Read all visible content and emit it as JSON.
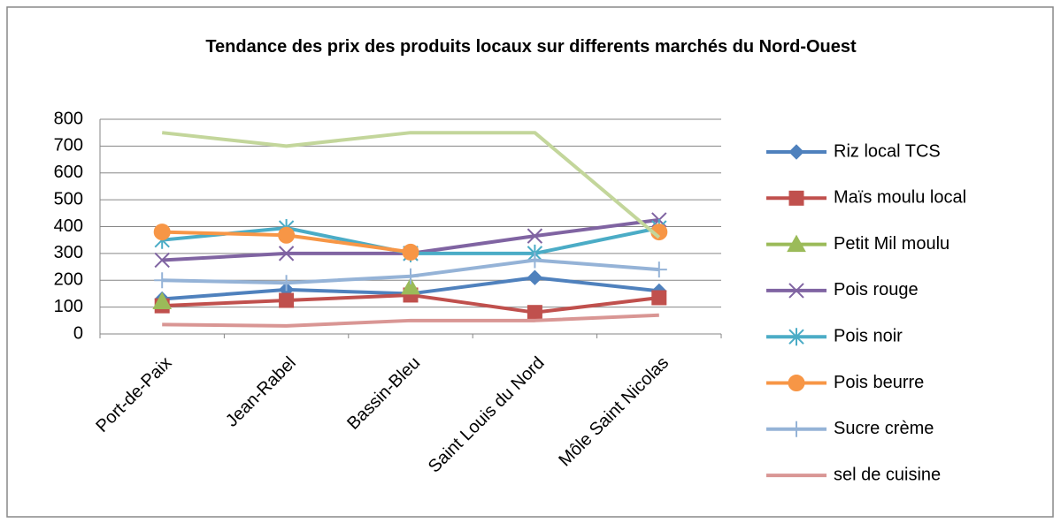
{
  "chart_data": {
    "type": "line",
    "title": "Tendance  des prix des produits locaux sur differents marchés du Nord-Ouest",
    "categories": [
      "Port-de-Paix",
      "Jean-Rabel",
      "Bassin-Bleu",
      "Saint Louis du Nord",
      "Môle Saint Nicolas"
    ],
    "ylim": [
      0,
      800
    ],
    "yticks": [
      0,
      100,
      200,
      300,
      400,
      500,
      600,
      700,
      800
    ],
    "grid": true,
    "legend": "right",
    "series": [
      {
        "name": "Riz local TCS",
        "color": "#4f81bd",
        "marker": "diamond",
        "values": [
          130,
          165,
          150,
          210,
          160
        ]
      },
      {
        "name": "Maïs moulu local",
        "color": "#c0504d",
        "marker": "square",
        "values": [
          105,
          125,
          145,
          80,
          135
        ]
      },
      {
        "name": "Petit Mil moulu",
        "color": "#9bbb59",
        "marker": "triangle",
        "values": [
          120,
          null,
          175,
          null,
          null
        ]
      },
      {
        "name": "Pois rouge",
        "color": "#8064a2",
        "marker": "x",
        "values": [
          275,
          300,
          300,
          365,
          425
        ]
      },
      {
        "name": "Pois noir",
        "color": "#4bacc6",
        "marker": "star",
        "values": [
          350,
          395,
          300,
          300,
          395
        ]
      },
      {
        "name": "Pois beurre",
        "color": "#f79646",
        "marker": "circle",
        "values": [
          380,
          368,
          305,
          null,
          380
        ]
      },
      {
        "name": "Sucre crème",
        "color": "#95b3d7",
        "marker": "plus",
        "values": [
          200,
          190,
          215,
          275,
          240
        ]
      },
      {
        "name": "sel de cuisine",
        "color": "#d99694",
        "marker": "none",
        "values": [
          35,
          30,
          50,
          50,
          70
        ]
      },
      {
        "color": "#c3d69b",
        "marker": "none",
        "values": [
          750,
          700,
          750,
          750,
          360
        ]
      }
    ]
  }
}
